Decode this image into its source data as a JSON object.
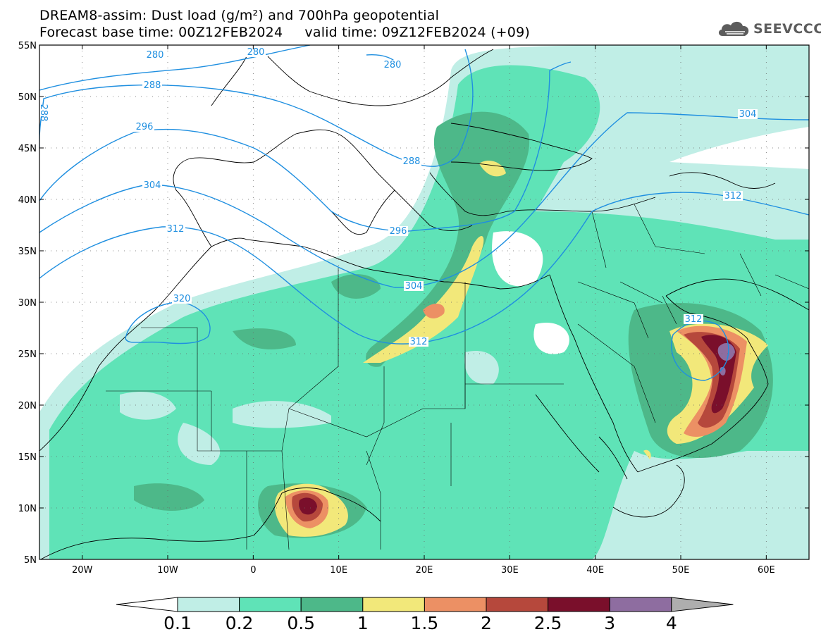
{
  "title": {
    "line1": "DREAM8-assim: Dust load (g/m²) and 700hPa geopotential",
    "line2": "Forecast base time: 00Z12FEB2024     valid time: 09Z12FEB2024 (+09)"
  },
  "logo": {
    "text": "SEEVCCC",
    "icon": "cloud-icon"
  },
  "map": {
    "lon_range": [
      -25,
      65
    ],
    "lat_range": [
      5,
      55
    ],
    "lat_ticks": [
      "55N",
      "50N",
      "45N",
      "40N",
      "35N",
      "30N",
      "25N",
      "20N",
      "15N",
      "10N",
      "5N"
    ],
    "lon_ticks": [
      "20W",
      "10W",
      "0",
      "10E",
      "20E",
      "30E",
      "40E",
      "50E",
      "60E"
    ],
    "contour_labels": [
      "280",
      "280",
      "280",
      "288",
      "288",
      "288",
      "296",
      "296",
      "304",
      "304",
      "304",
      "312",
      "312",
      "312",
      "312",
      "320"
    ],
    "contour_color": "#1f8fe0"
  },
  "colorbar": {
    "labels": [
      "0.1",
      "0.2",
      "0.5",
      "1",
      "1.5",
      "2",
      "2.5",
      "3",
      "4"
    ],
    "colors": [
      "#c0eee6",
      "#5fe3b7",
      "#4db889",
      "#f2e87a",
      "#ec9064",
      "#b6483c",
      "#7a0f2b",
      "#8e6da0",
      "#aeaeae"
    ],
    "under_color": "#ffffff"
  }
}
